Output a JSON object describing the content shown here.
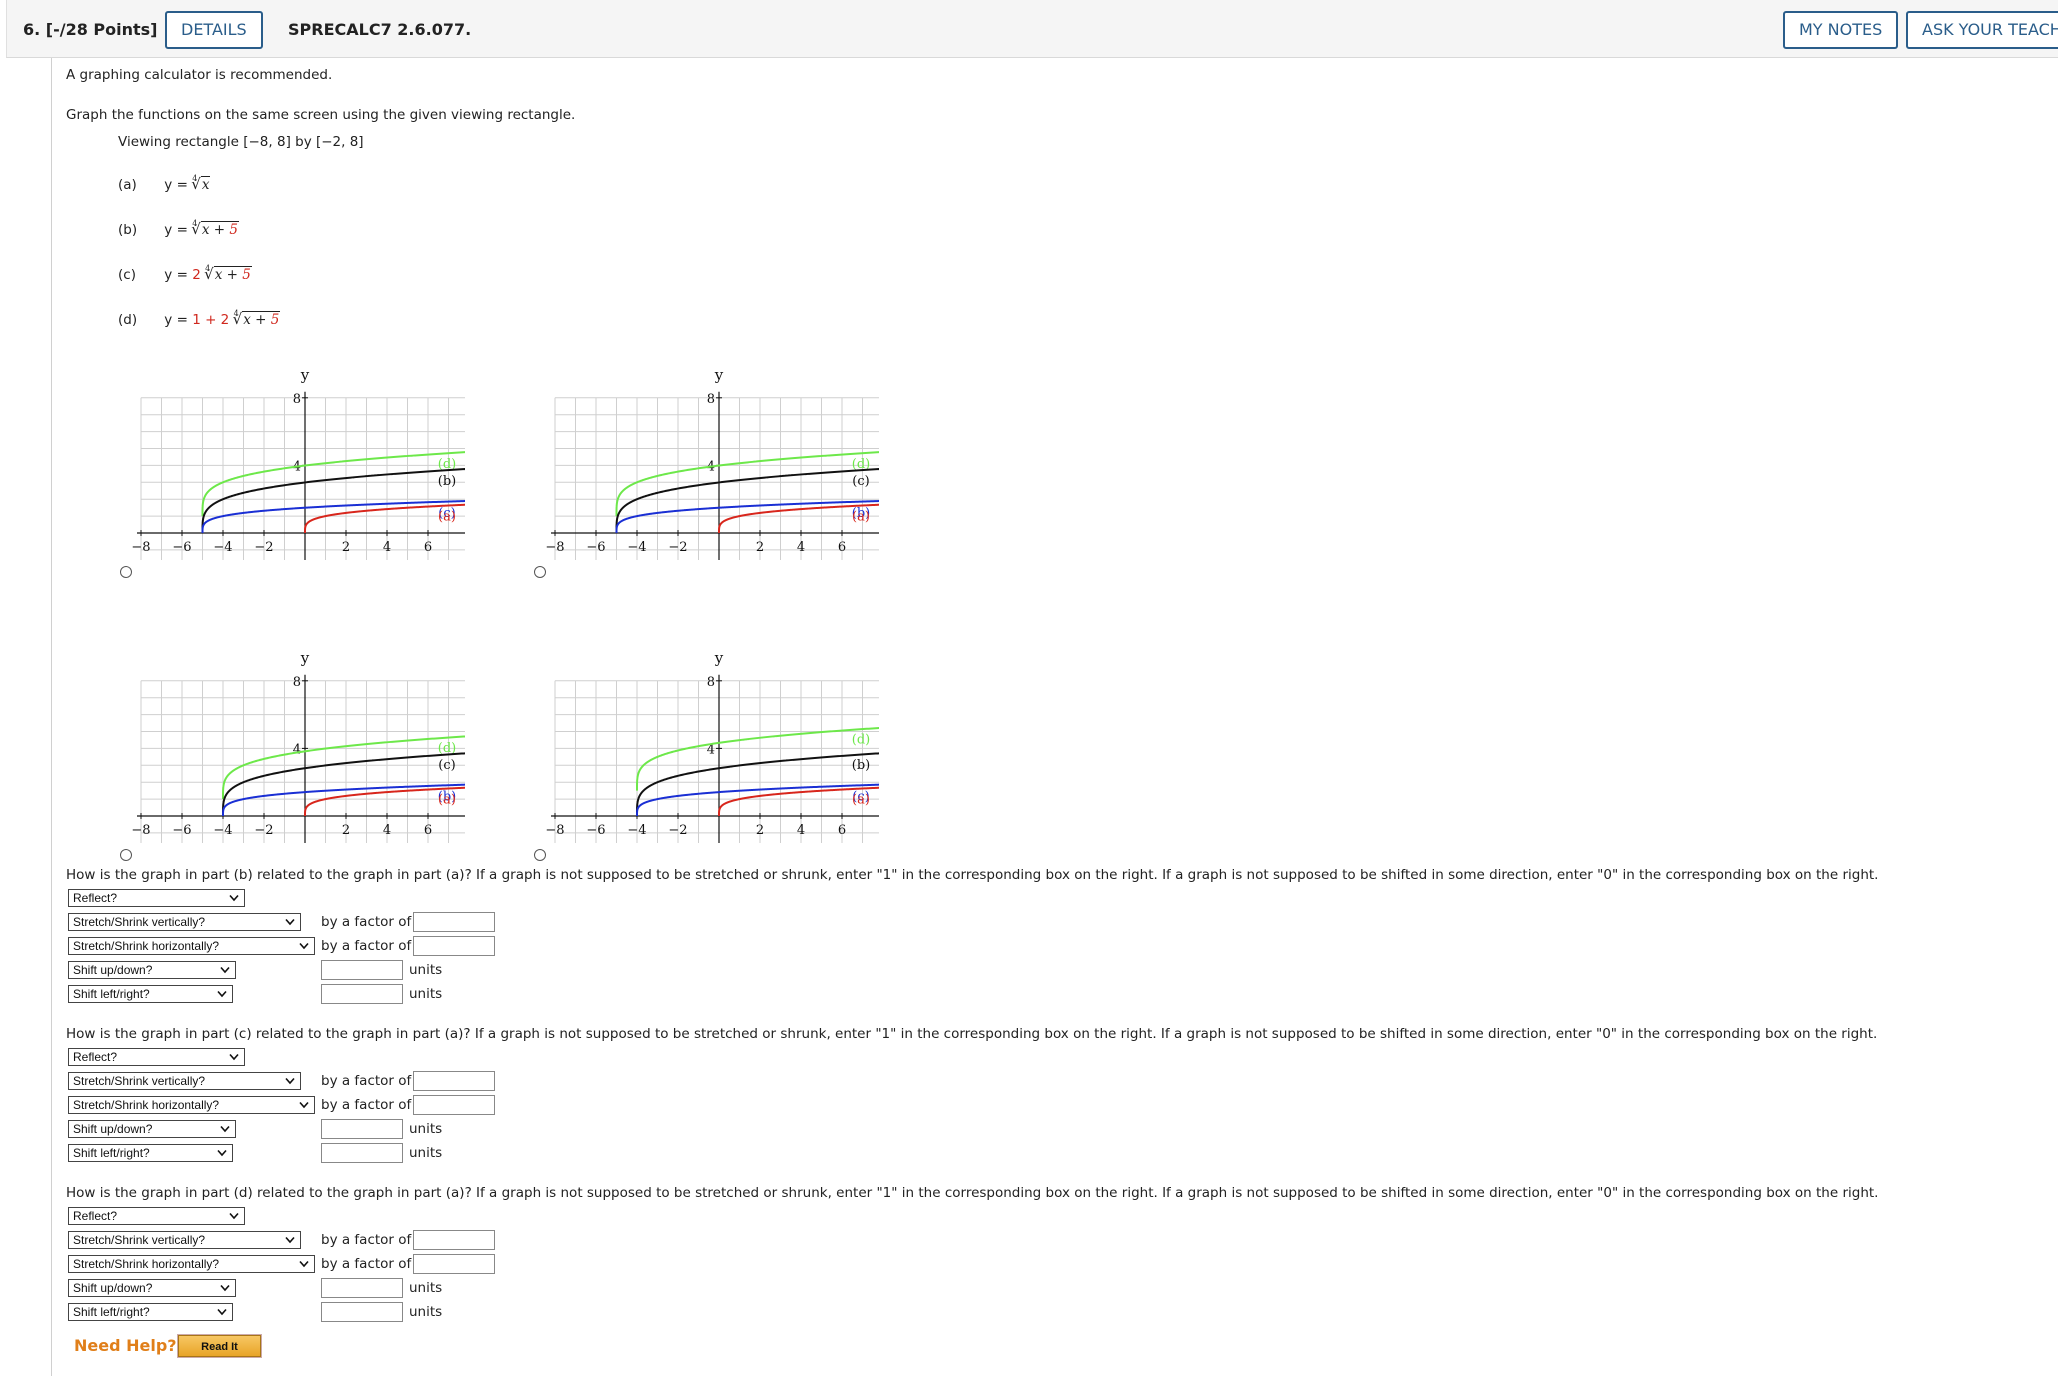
{
  "header": {
    "question_number": "6. [-/28 Points]",
    "details_label": "DETAILS",
    "problem_code": "SPRECALC7 2.6.077.",
    "my_notes_label": "MY NOTES",
    "ask_label": "ASK YOUR TEACH"
  },
  "intro": {
    "line1": "A graphing calculator is recommended.",
    "line2": "Graph the functions on the same screen using the given viewing rectangle.",
    "viewing": "Viewing rectangle [−8, 8] by [−2, 8]"
  },
  "functions": [
    {
      "label": "(a)",
      "prefix": "y = ",
      "coef": "",
      "index": "4",
      "rad_var": "x",
      "rad_const": ""
    },
    {
      "label": "(b)",
      "prefix": "y = ",
      "coef": "",
      "index": "4",
      "rad_var": "x + ",
      "rad_const": "5"
    },
    {
      "label": "(c)",
      "prefix": "y = ",
      "coef": "2",
      "index": "4",
      "rad_var": "x + ",
      "rad_const": "5"
    },
    {
      "label": "(d)",
      "prefix": "y = ",
      "coef": "1 + 2",
      "index": "4",
      "rad_var": "x + ",
      "rad_const": "5"
    }
  ],
  "chart_data": [
    {
      "type": "line",
      "xlabel": "x",
      "ylabel": "y",
      "xlim": [
        -8,
        8
      ],
      "ylim": [
        -2,
        8
      ],
      "xticks": [
        "−8",
        "−6",
        "−4",
        "−2",
        "2",
        "4",
        "6",
        "8"
      ],
      "yticks": [
        "4",
        "8"
      ],
      "grid": true,
      "series": [
        {
          "name": "(d)",
          "color": "#6de84a",
          "a": 2,
          "h": -5,
          "k": 1
        },
        {
          "name": "(b)",
          "color": "#111111",
          "a": 2,
          "h": -5,
          "k": 0
        },
        {
          "name": "(c)",
          "color": "#1a2fd4",
          "a": 1,
          "h": -5,
          "k": 0
        },
        {
          "name": "(a)",
          "color": "#d8261c",
          "a": 1,
          "h": 0,
          "k": 0
        }
      ]
    },
    {
      "type": "line",
      "xlabel": "x",
      "ylabel": "y",
      "xlim": [
        -8,
        8
      ],
      "ylim": [
        -2,
        8
      ],
      "xticks": [
        "−8",
        "−6",
        "−4",
        "−2",
        "2",
        "4",
        "6",
        "8"
      ],
      "yticks": [
        "4",
        "8"
      ],
      "grid": true,
      "series": [
        {
          "name": "(d)",
          "color": "#6de84a",
          "a": 2,
          "h": -5,
          "k": 1
        },
        {
          "name": "(c)",
          "color": "#111111",
          "a": 2,
          "h": -5,
          "k": 0
        },
        {
          "name": "(b)",
          "color": "#1a2fd4",
          "a": 1,
          "h": -5,
          "k": 0
        },
        {
          "name": "(a)",
          "color": "#d8261c",
          "a": 1,
          "h": 0,
          "k": 0
        }
      ]
    },
    {
      "type": "line",
      "xlabel": "x",
      "ylabel": "y",
      "xlim": [
        -8,
        8
      ],
      "ylim": [
        -2,
        8
      ],
      "xticks": [
        "−8",
        "−6",
        "−4",
        "−2",
        "2",
        "4",
        "6",
        "8"
      ],
      "yticks": [
        "4",
        "8"
      ],
      "grid": true,
      "series": [
        {
          "name": "(d)",
          "color": "#6de84a",
          "a": 2,
          "h": -4,
          "k": 1
        },
        {
          "name": "(c)",
          "color": "#111111",
          "a": 2,
          "h": -4,
          "k": 0
        },
        {
          "name": "(b)",
          "color": "#1a2fd4",
          "a": 1,
          "h": -4,
          "k": 0
        },
        {
          "name": "(a)",
          "color": "#d8261c",
          "a": 1,
          "h": 0,
          "k": 0
        }
      ]
    },
    {
      "type": "line",
      "xlabel": "x",
      "ylabel": "y",
      "xlim": [
        -8,
        8
      ],
      "ylim": [
        -2,
        8
      ],
      "xticks": [
        "−8",
        "−6",
        "−4",
        "−2",
        "2",
        "4",
        "6",
        "8"
      ],
      "yticks": [
        "4",
        "8"
      ],
      "grid": true,
      "series": [
        {
          "name": "(d)",
          "color": "#6de84a",
          "a": 2,
          "h": -4,
          "k": 1.5
        },
        {
          "name": "(b)",
          "color": "#111111",
          "a": 2,
          "h": -4,
          "k": 0
        },
        {
          "name": "(c)",
          "color": "#1a2fd4",
          "a": 1,
          "h": -4,
          "k": 0
        },
        {
          "name": "(a)",
          "color": "#d8261c",
          "a": 1,
          "h": 0,
          "k": 0
        }
      ]
    }
  ],
  "questions": [
    {
      "prompt": "How is the graph in part (b) related to the graph in part (a)? If a graph is not supposed to be stretched or shrunk, enter \"1\" in the corresponding box on the right. If a graph is not supposed to be shifted in some direction, enter \"0\" in the corresponding box on the right.",
      "reflect": "Reflect?",
      "stretch_v": "Stretch/Shrink vertically?",
      "stretch_h": "Stretch/Shrink horizontally?",
      "shift_ud": "Shift up/down?",
      "shift_lr": "Shift left/right?",
      "by_factor": "by a factor of",
      "units": "units"
    },
    {
      "prompt": "How is the graph in part (c) related to the graph in part (a)? If a graph is not supposed to be stretched or shrunk, enter \"1\" in the corresponding box on the right. If a graph is not supposed to be shifted in some direction, enter \"0\" in the corresponding box on the right.",
      "reflect": "Reflect?",
      "stretch_v": "Stretch/Shrink vertically?",
      "stretch_h": "Stretch/Shrink horizontally?",
      "shift_ud": "Shift up/down?",
      "shift_lr": "Shift left/right?",
      "by_factor": "by a factor of",
      "units": "units"
    },
    {
      "prompt": "How is the graph in part (d) related to the graph in part (a)? If a graph is not supposed to be stretched or shrunk, enter \"1\" in the corresponding box on the right. If a graph is not supposed to be shifted in some direction, enter \"0\" in the corresponding box on the right.",
      "reflect": "Reflect?",
      "stretch_v": "Stretch/Shrink vertically?",
      "stretch_h": "Stretch/Shrink horizontally?",
      "shift_ud": "Shift up/down?",
      "shift_lr": "Shift left/right?",
      "by_factor": "by a factor of",
      "units": "units"
    }
  ],
  "help": {
    "need_help": "Need Help?",
    "read_it": "Read It"
  }
}
